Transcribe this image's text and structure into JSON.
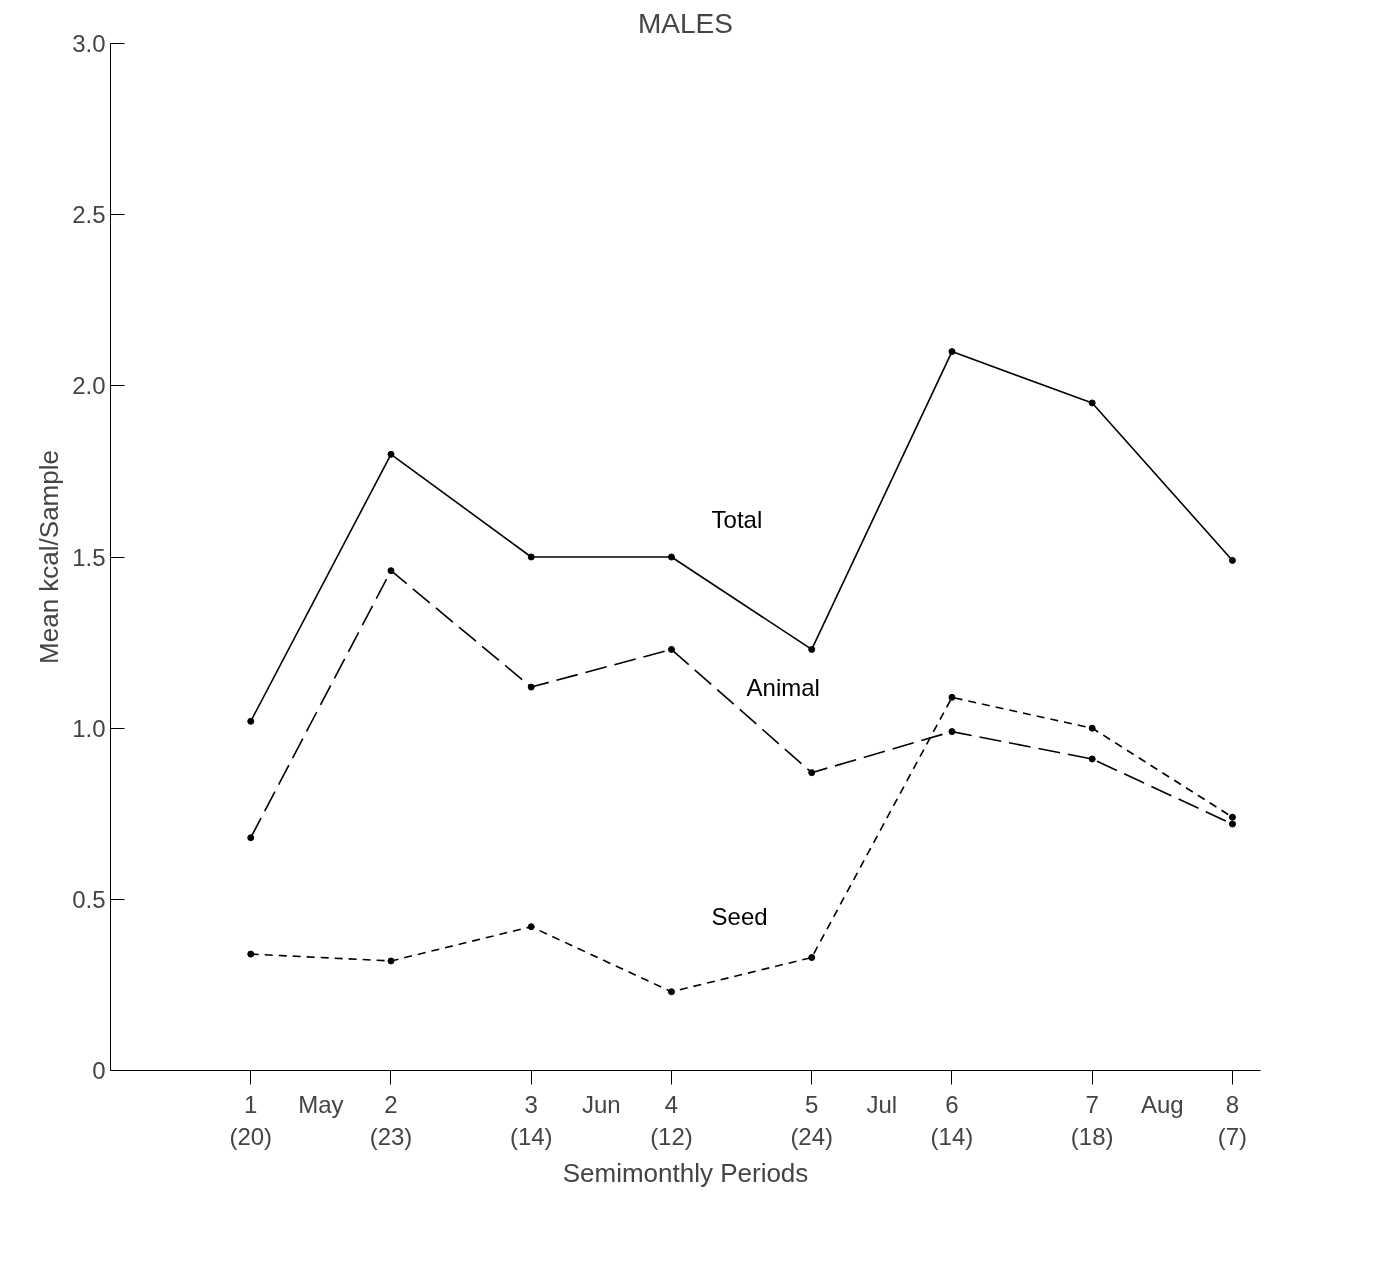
{
  "chart_data": {
    "type": "line",
    "title": "MALES",
    "xlabel": "Semimonthly Periods",
    "ylabel": "Mean kcal/Sample",
    "categories": [
      "1\n(20)",
      "2\n(23)",
      "3\n(14)",
      "4\n(12)",
      "5\n(24)",
      "6\n(14)",
      "7\n(18)",
      "8\n(7)"
    ],
    "annotations": [
      "May",
      "Jun",
      "Jul",
      "Aug"
    ],
    "ylim": [
      0,
      3.0
    ],
    "yticks": [
      0,
      0.5,
      {
        "value": 1,
        "label": "1.0"
      },
      1.5,
      {
        "value": 2,
        "label": "2.0"
      },
      2.5,
      {
        "value": 3,
        "label": "3.0"
      }
    ],
    "series": [
      {
        "name": "Total",
        "color": "#000000",
        "line_style": "solid",
        "values": [
          1.02,
          1.8,
          1.5,
          1.5,
          1.23,
          2.1,
          1.95,
          1.49
        ]
      },
      {
        "name": "Animal",
        "color": "#000000",
        "line_style": "dashed",
        "values": [
          0.68,
          1.46,
          1.12,
          1.23,
          0.87,
          0.99,
          0.91,
          0.72
        ]
      },
      {
        "name": "Seed",
        "color": "#000000",
        "line_style": "dotted",
        "values": [
          0.34,
          0.32,
          0.42,
          0.23,
          0.33,
          1.09,
          1.0,
          0.74
        ]
      }
    ],
    "marker": "circle",
    "grid": false
  }
}
